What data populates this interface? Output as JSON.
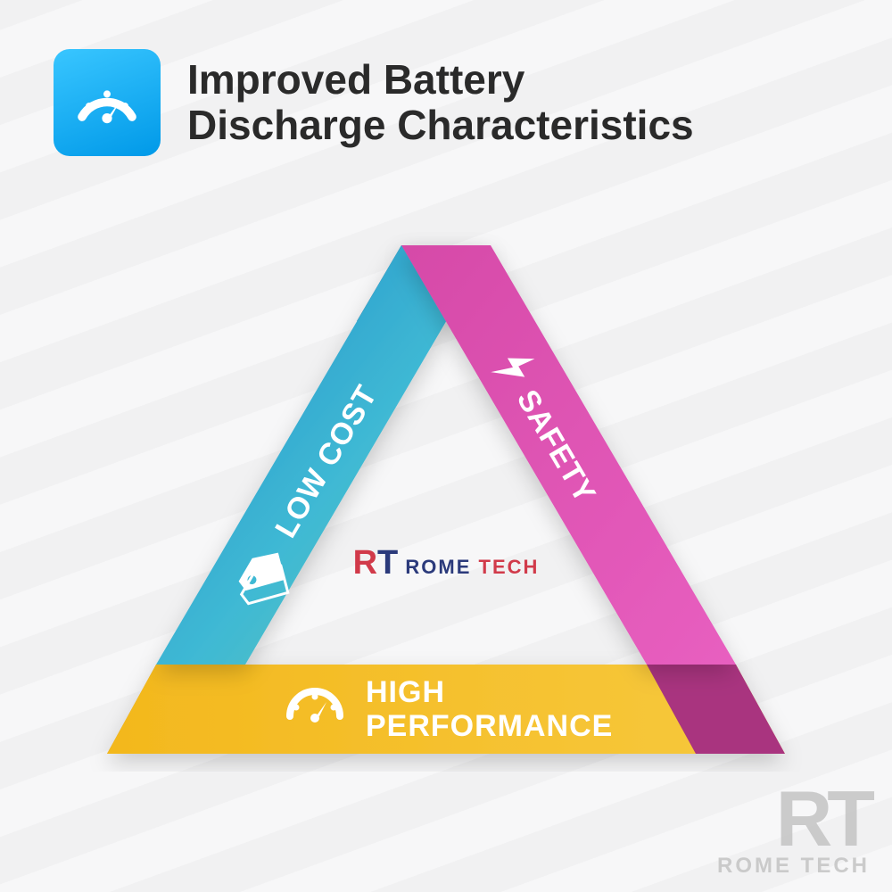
{
  "header": {
    "title": "Improved Battery\nDischarge Characteristics",
    "icon_name": "gauge-icon",
    "icon_bg_gradient": [
      "#39c6ff",
      "#0099e8"
    ],
    "title_color": "#2a2a2a",
    "title_fontsize": 46
  },
  "triangle": {
    "type": "infographic",
    "sides": [
      {
        "key": "low_cost",
        "label": "LOW COST",
        "icon": "tag-icon",
        "gradient": [
          "#3fb9d4",
          "#1f8bc9",
          "#65c8b0"
        ],
        "fold_color": "#1a6f9e"
      },
      {
        "key": "safety",
        "label": "SAFETY",
        "icon": "bolt-icon",
        "gradient": [
          "#d64aa8",
          "#e85fc0"
        ],
        "fold_color": "#a9347f"
      },
      {
        "key": "high_performance",
        "label_line1": "HIGH",
        "label_line2": "PERFORMANCE",
        "icon": "gauge-icon",
        "gradient": [
          "#f3b81d",
          "#f7c93e"
        ],
        "fold_color": "#c88f0e"
      }
    ],
    "center_logo": {
      "r": "R",
      "t": "T",
      "rome": "ROME",
      "tech": "TECH",
      "r_color": "#d13a4a",
      "t_color": "#2b3a7b"
    },
    "label_fontsize": 34,
    "label_color": "#ffffff"
  },
  "watermark": {
    "big": "RT",
    "small": "ROME TECH",
    "color": "#bdbdbd"
  },
  "background": {
    "stripe_colors": [
      "#f7f7f8",
      "#f1f1f2"
    ]
  }
}
